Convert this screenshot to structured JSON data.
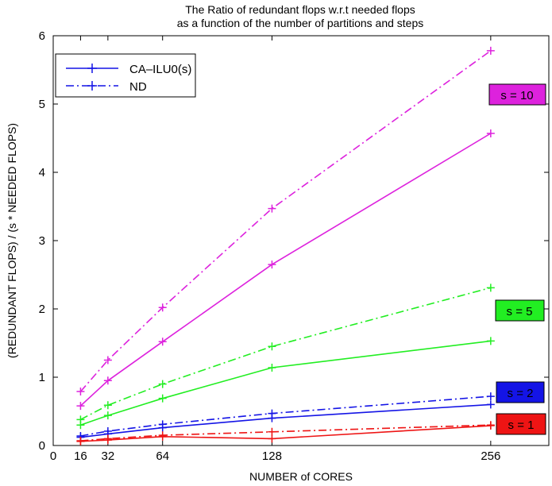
{
  "chart_data": {
    "type": "line",
    "title": [
      "The Ratio of redundant flops w.r.t needed flops",
      "as a function of the number of partitions and steps"
    ],
    "xlabel": "NUMBER of CORES",
    "ylabel": "(REDUNDANT FLOPS) / (s * NEEDED FLOPS)",
    "xlim": [
      0,
      290
    ],
    "ylim": [
      0,
      6
    ],
    "xticks": [
      0,
      16,
      32,
      64,
      128,
      256
    ],
    "yticks": [
      0,
      1,
      2,
      3,
      4,
      5,
      6
    ],
    "x": [
      16,
      32,
      64,
      128,
      256
    ],
    "legend": {
      "position": "top-left",
      "entries": [
        {
          "label": "CA–ILU0(s)",
          "style": "solid"
        },
        {
          "label": "ND",
          "style": "dashdot"
        }
      ]
    },
    "groups": [
      {
        "label": "s = 10",
        "color": "#dd22dd",
        "ca_ilu0": [
          0.58,
          0.95,
          1.52,
          2.65,
          4.57
        ],
        "nd": [
          0.79,
          1.25,
          2.02,
          3.47,
          5.78
        ]
      },
      {
        "label": "s = 5",
        "color": "#22ee22",
        "ca_ilu0": [
          0.3,
          0.44,
          0.69,
          1.14,
          1.53
        ],
        "nd": [
          0.38,
          0.59,
          0.9,
          1.45,
          2.31
        ]
      },
      {
        "label": "s = 2",
        "color": "#1414e6",
        "ca_ilu0": [
          0.12,
          0.17,
          0.26,
          0.4,
          0.6
        ],
        "nd": [
          0.14,
          0.21,
          0.31,
          0.47,
          0.72
        ]
      },
      {
        "label": "s = 1",
        "color": "#ee1414",
        "ca_ilu0": [
          0.06,
          0.08,
          0.13,
          0.1,
          0.29
        ],
        "nd": [
          0.07,
          0.1,
          0.15,
          0.2,
          0.3
        ]
      }
    ]
  }
}
